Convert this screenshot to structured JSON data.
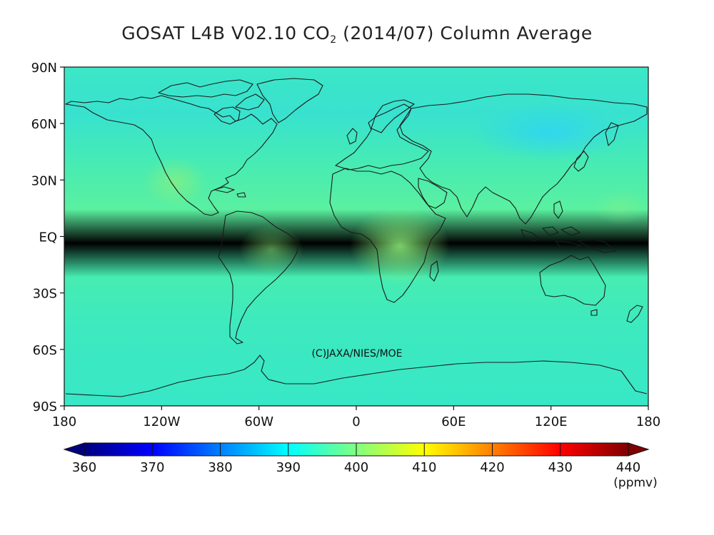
{
  "title": {
    "prefix": "GOSAT L4B V02.10 CO",
    "subscript": "2",
    "suffix": " (2014/07) Column Average"
  },
  "credit": "(C)JAXA/NIES/MOE",
  "map": {
    "projection": "equirectangular",
    "lon_range": [
      -180,
      180
    ],
    "lat_range": [
      -90,
      90
    ],
    "field_colors": {
      "low": "#38e8c4",
      "mid": "#44ecb2",
      "high": "#80f07e",
      "north_minimum": "#36dbea"
    }
  },
  "axes": {
    "y_ticks": [
      {
        "lat": 90,
        "label": "90N"
      },
      {
        "lat": 60,
        "label": "60N"
      },
      {
        "lat": 30,
        "label": "30N"
      },
      {
        "lat": 0,
        "label": "EQ"
      },
      {
        "lat": -30,
        "label": "30S"
      },
      {
        "lat": -60,
        "label": "60S"
      },
      {
        "lat": -90,
        "label": "90S"
      }
    ],
    "x_ticks": [
      {
        "lon": -180,
        "label": "180"
      },
      {
        "lon": -120,
        "label": "120W"
      },
      {
        "lon": -60,
        "label": "60W"
      },
      {
        "lon": 0,
        "label": "0"
      },
      {
        "lon": 60,
        "label": "60E"
      },
      {
        "lon": 120,
        "label": "120E"
      },
      {
        "lon": 180,
        "label": "180"
      }
    ]
  },
  "colorbar": {
    "min": 360,
    "max": 440,
    "unit": "(ppmv)",
    "ticks": [
      {
        "value": 360,
        "label": "360"
      },
      {
        "value": 370,
        "label": "370"
      },
      {
        "value": 380,
        "label": "380"
      },
      {
        "value": 390,
        "label": "390"
      },
      {
        "value": 400,
        "label": "400"
      },
      {
        "value": 410,
        "label": "410"
      },
      {
        "value": 420,
        "label": "420"
      },
      {
        "value": 430,
        "label": "430"
      },
      {
        "value": 440,
        "label": "440"
      }
    ],
    "colors": [
      "#00007f",
      "#0000ff",
      "#0080ff",
      "#00ffff",
      "#80ff80",
      "#ffff00",
      "#ff8000",
      "#ff0000",
      "#7f0000"
    ]
  }
}
